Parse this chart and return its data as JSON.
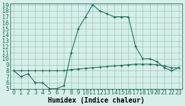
{
  "line1_x": [
    0,
    1,
    2,
    3,
    4,
    5,
    6,
    7,
    8,
    9,
    10,
    11,
    12,
    13,
    14,
    15,
    16,
    17,
    18,
    19,
    20,
    21,
    22,
    23
  ],
  "line1_y": [
    8,
    7,
    7.5,
    6,
    6,
    5,
    5,
    5.5,
    11,
    15,
    17,
    19,
    18,
    17.5,
    17,
    17,
    17,
    12,
    10,
    10,
    9.5,
    8.5,
    8,
    8.5
  ],
  "line2_x": [
    0,
    1,
    2,
    3,
    4,
    5,
    6,
    7,
    8,
    9,
    10,
    11,
    12,
    13,
    14,
    15,
    16,
    17,
    18,
    19,
    20,
    21,
    22,
    23
  ],
  "line2_y": [
    8,
    8,
    8,
    8,
    8,
    8,
    8,
    8,
    8.2,
    8.3,
    8.4,
    8.5,
    8.6,
    8.7,
    8.8,
    8.9,
    9.0,
    9.1,
    9.1,
    9.1,
    9.0,
    8.8,
    8.5,
    8.5
  ],
  "line_color": "#1a6b5a",
  "bg_color": "#d8eee8",
  "grid_color": "#7bbfb0",
  "xlabel": "Humidex (Indice chaleur)",
  "ylim": [
    5,
    19
  ],
  "xlim": [
    -0.5,
    23.5
  ],
  "yticks": [
    5,
    6,
    7,
    8,
    9,
    10,
    11,
    12,
    13,
    14,
    15,
    16,
    17,
    18,
    19
  ],
  "xticks": [
    0,
    1,
    2,
    3,
    4,
    5,
    6,
    7,
    8,
    9,
    10,
    11,
    12,
    13,
    14,
    15,
    16,
    17,
    18,
    19,
    20,
    21,
    22,
    23
  ],
  "marker": "+",
  "markersize": 3,
  "linewidth": 0.8,
  "font_size": 6
}
